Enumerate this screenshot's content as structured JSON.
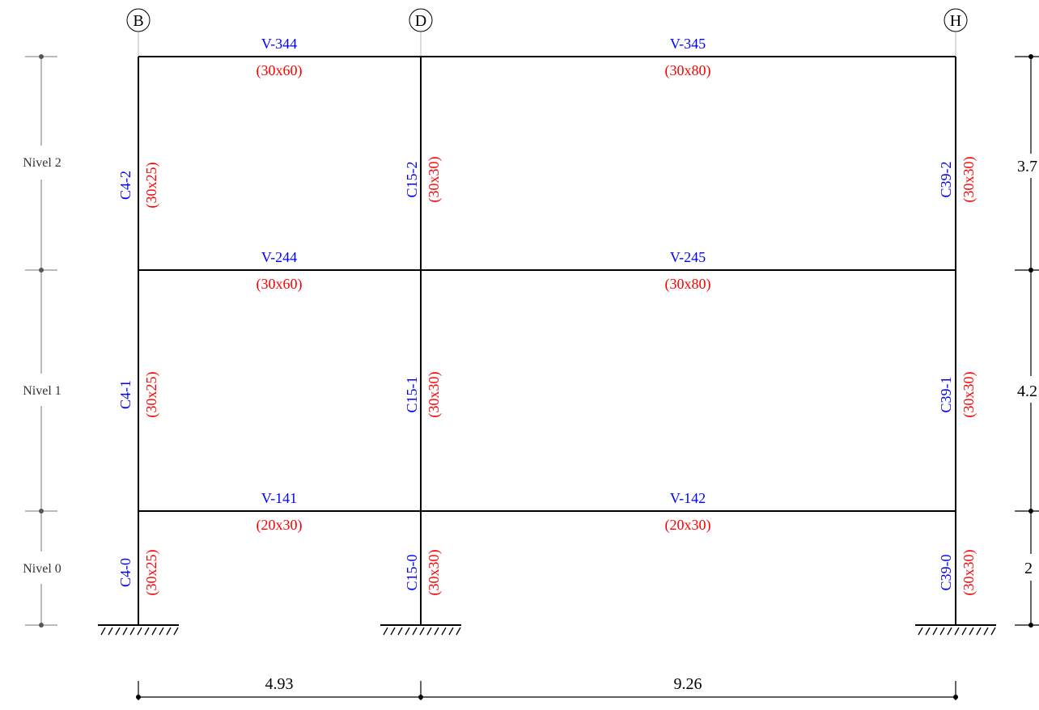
{
  "colors": {
    "name": "#0000ff",
    "size": "#ff0000",
    "member": "#000000",
    "guide": "#555555"
  },
  "axes": {
    "B": "B",
    "D": "D",
    "H": "H"
  },
  "levels": {
    "n2": "Nivel 2",
    "n1": "Nivel 1",
    "n0": "Nivel 0"
  },
  "beams": {
    "v344": {
      "name": "V-344",
      "size": "(30x60)"
    },
    "v345": {
      "name": "V-345",
      "size": "(30x80)"
    },
    "v244": {
      "name": "V-244",
      "size": "(30x60)"
    },
    "v245": {
      "name": "V-245",
      "size": "(30x80)"
    },
    "v141": {
      "name": "V-141",
      "size": "(20x30)"
    },
    "v142": {
      "name": "V-142",
      "size": "(20x30)"
    }
  },
  "columns": {
    "c4_2": {
      "name": "C4-2",
      "size": "(30x25)"
    },
    "c15_2": {
      "name": "C15-2",
      "size": "(30x30)"
    },
    "c39_2": {
      "name": "C39-2",
      "size": "(30x30)"
    },
    "c4_1": {
      "name": "C4-1",
      "size": "(30x25)"
    },
    "c15_1": {
      "name": "C15-1",
      "size": "(30x30)"
    },
    "c39_1": {
      "name": "C39-1",
      "size": "(30x30)"
    },
    "c4_0": {
      "name": "C4-0",
      "size": "(30x25)"
    },
    "c15_0": {
      "name": "C15-0",
      "size": "(30x30)"
    },
    "c39_0": {
      "name": "C39-0",
      "size": "(30x30)"
    }
  },
  "dimensions": {
    "span_bd": "4.93",
    "span_dh": "9.26",
    "height_n2": "3.7",
    "height_n1": "4.2",
    "height_n0": "2"
  }
}
